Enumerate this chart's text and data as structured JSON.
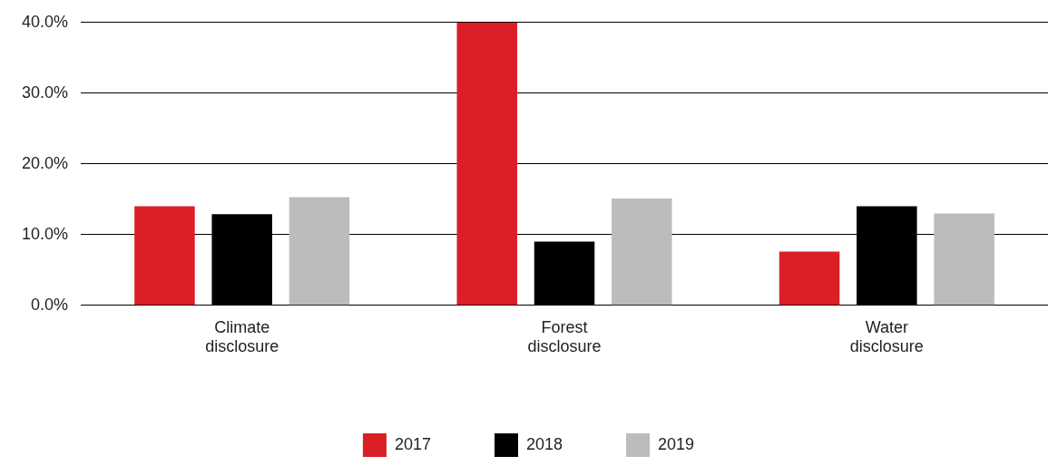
{
  "chart_data": {
    "type": "bar",
    "categories": [
      "Climate disclosure",
      "Forest disclosure",
      "Water disclosure"
    ],
    "series": [
      {
        "name": "2017",
        "color": "#da1f26",
        "values": [
          14.0,
          40.0,
          7.6
        ]
      },
      {
        "name": "2018",
        "color": "#000000",
        "values": [
          12.9,
          9.0,
          14.0
        ]
      },
      {
        "name": "2019",
        "color": "#bcbcbd",
        "values": [
          15.3,
          15.1,
          13.0
        ]
      }
    ],
    "ylim": [
      0,
      40
    ],
    "yticks": [
      {
        "value": 0,
        "label": "0.0%"
      },
      {
        "value": 10,
        "label": "10.0%"
      },
      {
        "value": 20,
        "label": "20.0%"
      },
      {
        "value": 30,
        "label": "30.0%"
      },
      {
        "value": 40,
        "label": "40.0%"
      }
    ],
    "grid": "y",
    "legend": "bottom"
  }
}
